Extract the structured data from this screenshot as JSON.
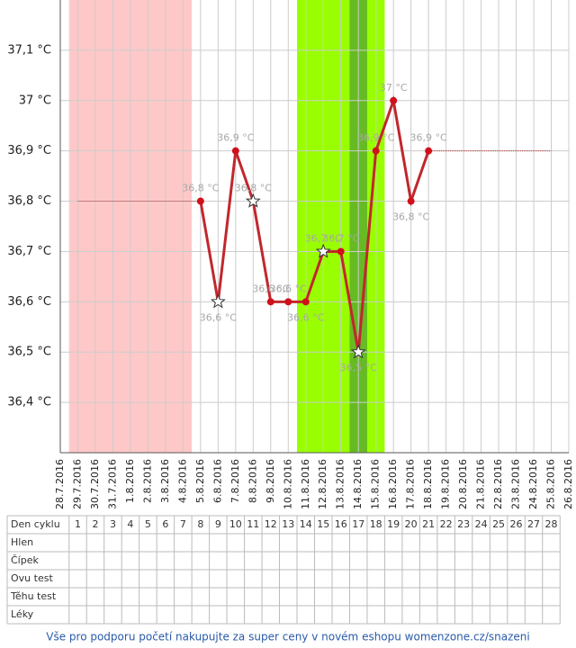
{
  "chart_data": {
    "type": "line",
    "x": [
      "28.7.2016",
      "29.7.2016",
      "30.7.2016",
      "31.7.2016",
      "1.8.2016",
      "2.8.2016",
      "3.8.2016",
      "4.8.2016",
      "5.8.2016",
      "6.8.2016",
      "7.8.2016",
      "8.8.2016",
      "9.8.2016",
      "10.8.2016",
      "11.8.2016",
      "12.8.2016",
      "13.8.2016",
      "14.8.2016",
      "15.8.2016",
      "16.8.2016",
      "17.8.2016",
      "18.8.2016",
      "19.8.2016",
      "20.8.2016",
      "21.8.2016",
      "22.8.2016",
      "23.8.2016",
      "24.8.2016",
      "25.8.2016",
      "26.8.2016"
    ],
    "series": [
      {
        "color": "#c1272d",
        "marker_color": "#d0101a",
        "values": [
          null,
          null,
          null,
          null,
          null,
          null,
          null,
          null,
          36.8,
          36.6,
          36.9,
          36.8,
          36.6,
          36.6,
          36.6,
          36.7,
          36.7,
          36.5,
          36.9,
          37.0,
          36.8,
          36.9,
          null,
          null,
          null,
          null,
          null,
          null,
          null,
          null
        ],
        "value_labels": [
          null,
          null,
          null,
          null,
          null,
          null,
          null,
          null,
          "36,8 °C",
          "36,6 °C",
          "36,9 °C",
          "36,8 °C",
          "36,6 °C",
          "36,6 °C",
          "36,6 °C",
          "36,7 °C",
          "36,7 °C",
          "36,5 °C",
          "36,9 °C",
          "37 °C",
          "36,8 °C",
          "36,9 °C",
          null,
          null,
          null,
          null,
          null,
          null,
          null,
          null
        ],
        "markers": [
          null,
          null,
          null,
          null,
          null,
          null,
          null,
          null,
          "circle",
          "star",
          "circle",
          "star",
          "circle",
          "circle",
          "circle",
          "star",
          "circle",
          "star",
          "circle",
          "circle",
          "circle",
          "circle",
          null,
          null,
          null,
          null,
          null,
          null,
          null,
          null
        ]
      }
    ],
    "reference_lines": [
      {
        "value": 36.8,
        "start": "29.7.2016",
        "end": "5.8.2016",
        "color": "#b03030"
      },
      {
        "value": 36.9,
        "start": "18.8.2016",
        "end": "25.8.2016",
        "color": "#b03030"
      }
    ],
    "bands": [
      {
        "start": "29.7.2016",
        "end": "4.8.2016",
        "color": "#ffc8c8"
      },
      {
        "start": "11.8.2016",
        "end": "15.8.2016",
        "color": "#99ff00"
      },
      {
        "start": "14.8.2016",
        "end": "14.8.2016",
        "color": "#66bb22"
      }
    ],
    "ylim": [
      36.3,
      37.2
    ],
    "yticks": [
      {
        "value": 36.4,
        "label": "36,4 °C"
      },
      {
        "value": 36.5,
        "label": "36,5 °C"
      },
      {
        "value": 36.6,
        "label": "36,6 °C"
      },
      {
        "value": 36.7,
        "label": "36,7 °C"
      },
      {
        "value": 36.8,
        "label": "36,8 °C"
      },
      {
        "value": 36.9,
        "label": "36,9 °C"
      },
      {
        "value": 37.0,
        "label": "37 °C"
      },
      {
        "value": 37.1,
        "label": "37,1 °C"
      }
    ],
    "grid": true
  },
  "table": {
    "header": "Den cyklu",
    "days": [
      1,
      2,
      3,
      4,
      5,
      6,
      7,
      8,
      9,
      10,
      11,
      12,
      13,
      14,
      15,
      16,
      17,
      18,
      19,
      20,
      21,
      22,
      23,
      24,
      25,
      26,
      27,
      28
    ],
    "rows": [
      "Hlen",
      "Čípek",
      "Ovu test",
      "Těhu test",
      "Léky"
    ]
  },
  "footer": "Vše pro podporu početí nakupujte za super ceny v novém eshopu womenzone.cz/snazeni"
}
